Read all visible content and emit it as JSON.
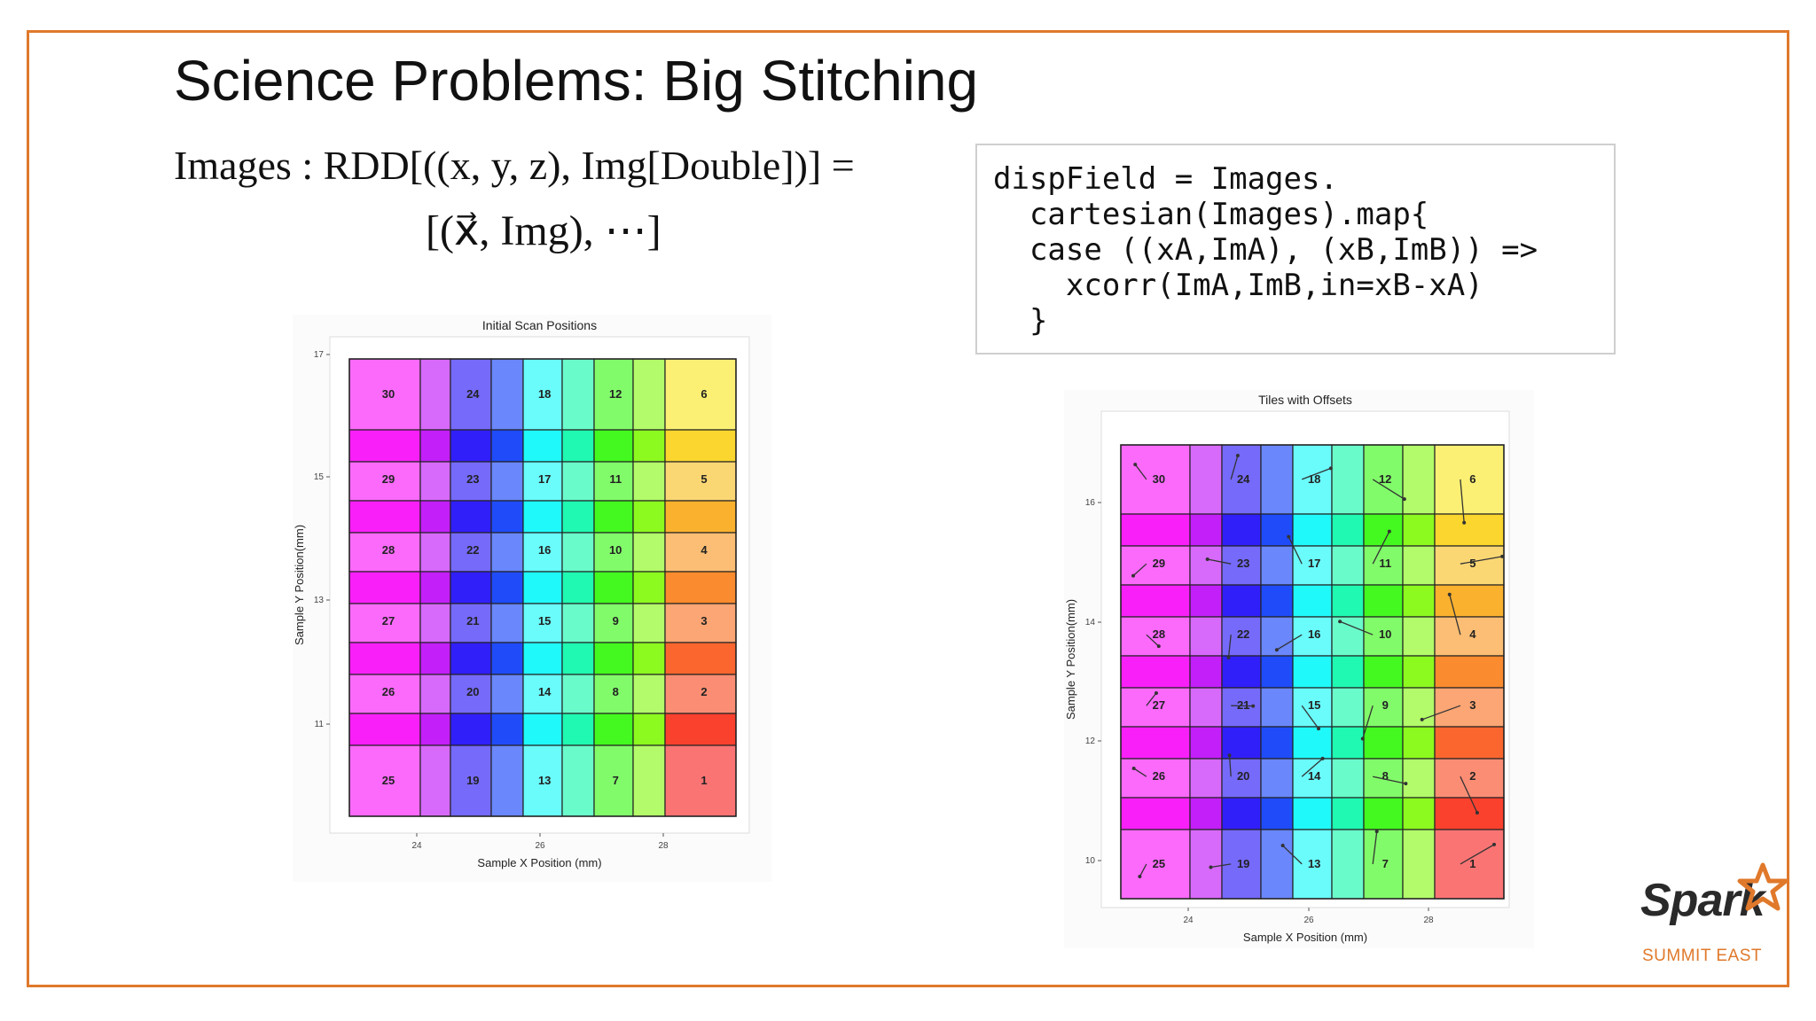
{
  "slide": {
    "title": "Science Problems: Big Stitching",
    "math_line1": "Images : RDD[((x, y, z), Img[Double])] =",
    "math_line2": "[(x⃗, Img), ⋯]",
    "code": "dispField = Images.\n  cartesian(Images).map{\n  case ((xA,ImA), (xB,ImB)) =>\n    xcorr(ImA,ImB,in=xB-xA)\n  }",
    "logo": {
      "name": "Spark",
      "sub": "SUMMIT EAST",
      "accent": "#e0792b"
    }
  },
  "chart_data": [
    {
      "type": "heatmap",
      "title": "Initial Scan Positions",
      "xlabel": "Sample X Position (mm)",
      "ylabel": "Sample Y Position(mm)",
      "x_ticks": [
        "24",
        "26",
        "28"
      ],
      "y_ticks": [
        "17",
        "15",
        "13",
        "11"
      ],
      "tile_labels": [
        "30",
        "24",
        "18",
        "12",
        "6",
        "29",
        "23",
        "17",
        "11",
        "5",
        "28",
        "22",
        "16",
        "10",
        "4",
        "27",
        "21",
        "15",
        "9",
        "3",
        "26",
        "20",
        "14",
        "8",
        "2",
        "25",
        "19",
        "13",
        "7",
        "1"
      ]
    },
    {
      "type": "heatmap",
      "title": "Tiles with Offsets",
      "xlabel": "Sample X Position (mm)",
      "ylabel": "Sample Y Position(mm)",
      "x_ticks": [
        "24",
        "26",
        "28"
      ],
      "y_ticks": [
        "16",
        "14",
        "12",
        "10"
      ],
      "tile_labels": [
        "30",
        "24",
        "18",
        "12",
        "6",
        "29",
        "23",
        "17",
        "11",
        "5",
        "28",
        "22",
        "16",
        "10",
        "4",
        "27",
        "21",
        "15",
        "9",
        "3",
        "26",
        "20",
        "14",
        "8",
        "2",
        "25",
        "19",
        "13",
        "7",
        "1"
      ]
    }
  ]
}
